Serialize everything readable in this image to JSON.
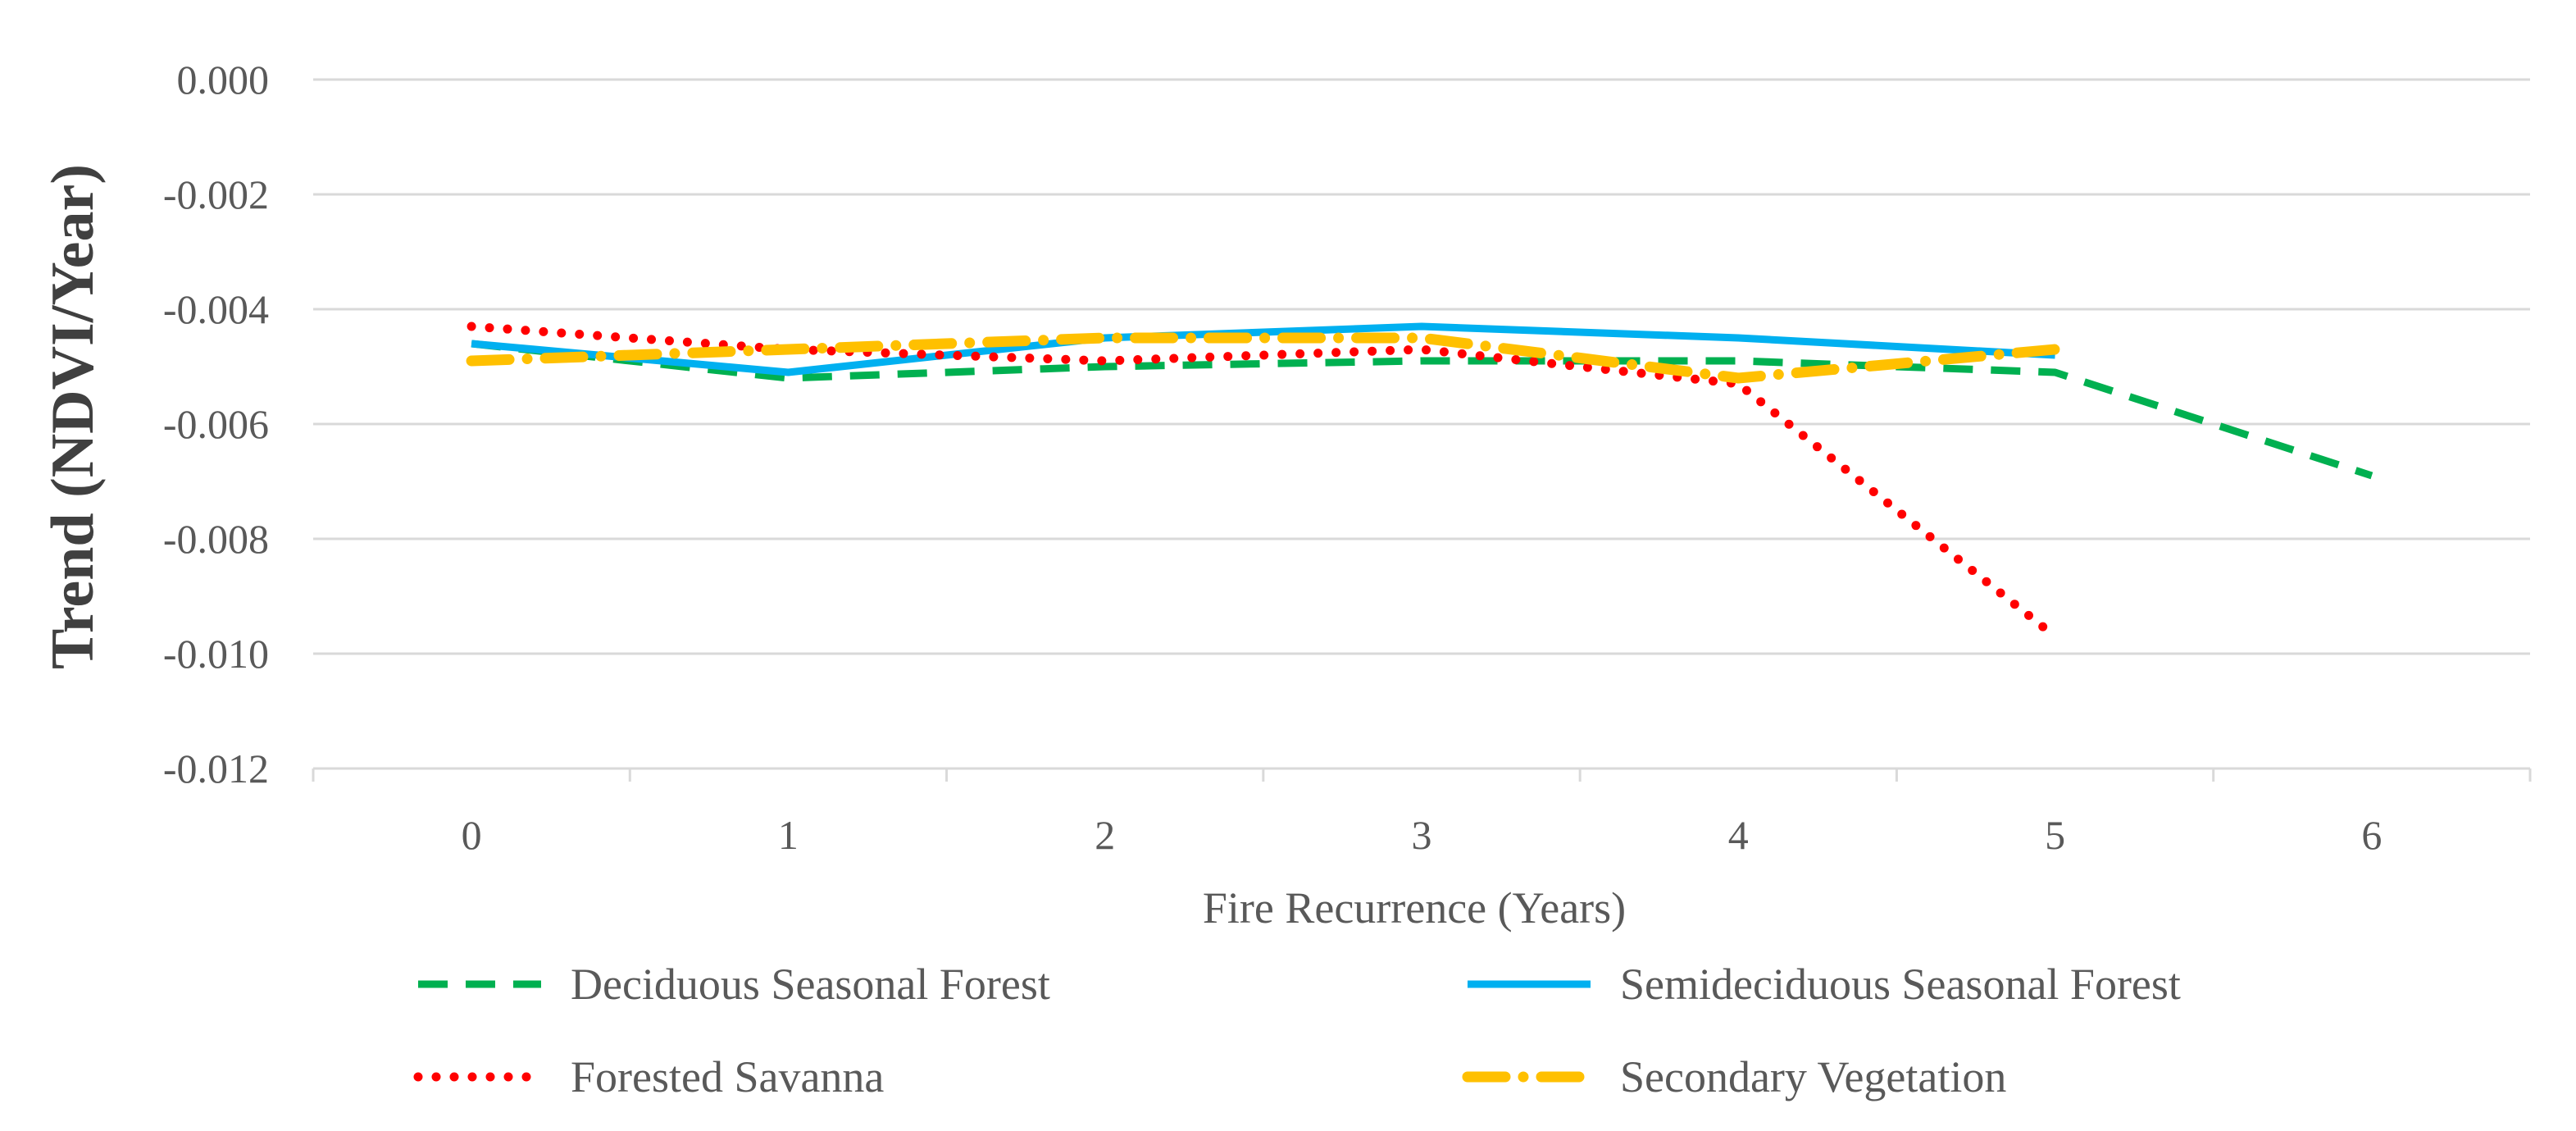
{
  "chart_data": {
    "type": "line",
    "title": "",
    "xlabel": "Fire Recurrence (Years)",
    "ylabel": "Trend (NDVI/Year)",
    "x": [
      0,
      1,
      2,
      3,
      4,
      5,
      6
    ],
    "xlim": [
      -0.5,
      6.5
    ],
    "ylim": [
      -0.012,
      0.0
    ],
    "yticks": [
      "0.000",
      "-0.002",
      "-0.004",
      "-0.006",
      "-0.008",
      "-0.010",
      "-0.012"
    ],
    "ytick_values": [
      0.0,
      -0.002,
      -0.004,
      -0.006,
      -0.008,
      -0.01,
      -0.012
    ],
    "xticks": [
      "0",
      "1",
      "2",
      "3",
      "4",
      "5",
      "6"
    ],
    "grid": true,
    "legend_position": "bottom",
    "series": [
      {
        "name": "Deciduous Seasonal Forest",
        "x": [
          0,
          1,
          2,
          3,
          4,
          5,
          6
        ],
        "values": [
          -0.0046,
          -0.0052,
          -0.005,
          -0.0049,
          -0.0049,
          -0.0051,
          -0.0069
        ],
        "color": "#00B050",
        "style": "dashed"
      },
      {
        "name": "Semideciduous Seasonal Forest",
        "x": [
          0,
          1,
          2,
          3,
          4,
          5
        ],
        "values": [
          -0.0046,
          -0.0051,
          -0.0045,
          -0.0043,
          -0.0045,
          -0.0048
        ],
        "color": "#00B0F0",
        "style": "solid"
      },
      {
        "name": "Forested Savanna",
        "x": [
          0,
          1,
          2,
          3,
          4,
          5
        ],
        "values": [
          -0.0043,
          -0.0047,
          -0.0049,
          -0.0047,
          -0.0053,
          -0.0097
        ],
        "color": "#FF0000",
        "style": "dotted"
      },
      {
        "name": "Secondary Vegetation",
        "x": [
          0,
          1,
          2,
          3,
          4,
          5
        ],
        "values": [
          -0.0049,
          -0.0047,
          -0.0045,
          -0.0045,
          -0.0052,
          -0.0047
        ],
        "color": "#FFC000",
        "style": "dash-dot"
      }
    ]
  }
}
